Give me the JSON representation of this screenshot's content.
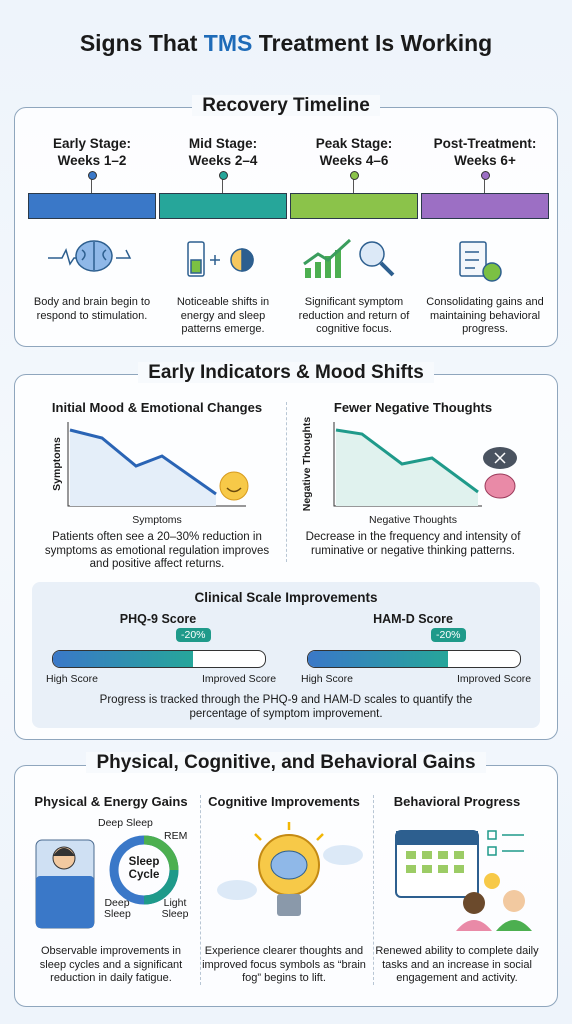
{
  "header": {
    "title_before": "Signs That",
    "title_highlight": "TMS",
    "title_after": "Treatment Is Working"
  },
  "timeline": {
    "title": "Recovery Timeline",
    "stages": [
      {
        "name": "Early Stage:",
        "weeks": "Weeks 1–2",
        "text": "Body and brain begin to respond to stimulation."
      },
      {
        "name": "Mid Stage:",
        "weeks": "Weeks 2–4",
        "text": "Noticeable shifts in energy and sleep patterns emerge."
      },
      {
        "name": "Peak Stage:",
        "weeks": "Weeks 4–6",
        "text": "Significant symptom reduction and return of cognitive focus."
      },
      {
        "name": "Post-Treatment:",
        "weeks": "Weeks 6+",
        "text": "Consolidating gains and maintaining behavioral progress."
      }
    ]
  },
  "mood": {
    "title": "Early Indicators & Mood Shifts",
    "panels": [
      {
        "title": "Initial Mood & Emotional Changes",
        "y_label": "Symptoms",
        "x_label": "Symptoms",
        "text": "Patients often see a 20–30% reduction in symptoms as emotional regulation improves and positive affect returns."
      },
      {
        "title": "Fewer Negative Thoughts",
        "y_label": "Negative Thoughts",
        "x_label": "Negative Thoughts",
        "text": "Decrease in the frequency and intensity of ruminative or negative thinking patterns."
      }
    ],
    "scales": {
      "title": "Clinical Scale Improvements",
      "items": [
        {
          "name": "PHQ-9 Score",
          "badge": "-20%",
          "left_label": "High Score",
          "right_label": "Improved Score"
        },
        {
          "name": "HAM-D Score",
          "badge": "-20%",
          "left_label": "High Score",
          "right_label": "Improved Score"
        }
      ],
      "text": "Progress is tracked through the PHQ-9 and HAM-D scales to quantify the percentage of symptom improvement."
    }
  },
  "gains": {
    "title": "Physical, Cognitive, and Behavioral Gains",
    "columns": [
      {
        "title": "Physical & Energy Gains",
        "text": "Observable improvements in sleep cycles and a significant reduction in daily fatigue."
      },
      {
        "title": "Cognitive Improvements",
        "text": "Experience clearer thoughts and improved focus symbols as “brain fog” begins to lift."
      },
      {
        "title": "Behavioral Progress",
        "text": "Renewed ability to complete daily tasks and an increase in social engagement and activity."
      }
    ],
    "sleep_cycle": {
      "center": "Sleep Cycle",
      "deep_top": "Deep Sleep",
      "rem": "REM",
      "deep_bottom": "Deep Sleep",
      "light": "Light Sleep"
    }
  }
}
